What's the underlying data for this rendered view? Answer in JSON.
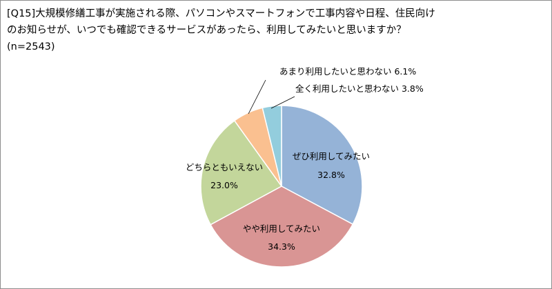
{
  "title": {
    "line1": "[Q15]大規模修繕工事が実施される際、パソコンやスマートフォンで工事内容や日程、住民向け",
    "line2": "のお知らせが、いつでも確認できるサービスがあったら、利用してみたいと思いますか？",
    "line3": "(n=2543)"
  },
  "chart_data": {
    "type": "pie",
    "n": 2543,
    "slices": [
      {
        "label": "ぜひ利用してみたい",
        "value": 32.8,
        "value_label": "32.8%",
        "color": "#95b3d7"
      },
      {
        "label": "やや利用してみたい",
        "value": 34.3,
        "value_label": "34.3%",
        "color": "#d99594"
      },
      {
        "label": "どちらともいえない",
        "value": 23.0,
        "value_label": "23.0%",
        "color": "#c3d69b"
      },
      {
        "label": "あまり利用したいと思わない",
        "value": 6.1,
        "value_label": "6.1%",
        "color": "#fac090"
      },
      {
        "label": "全く利用したいと思わない",
        "value": 3.8,
        "value_label": "3.8%",
        "color": "#93cddd"
      }
    ],
    "start": "12 o'clock",
    "direction": "clockwise",
    "legend": "none"
  }
}
